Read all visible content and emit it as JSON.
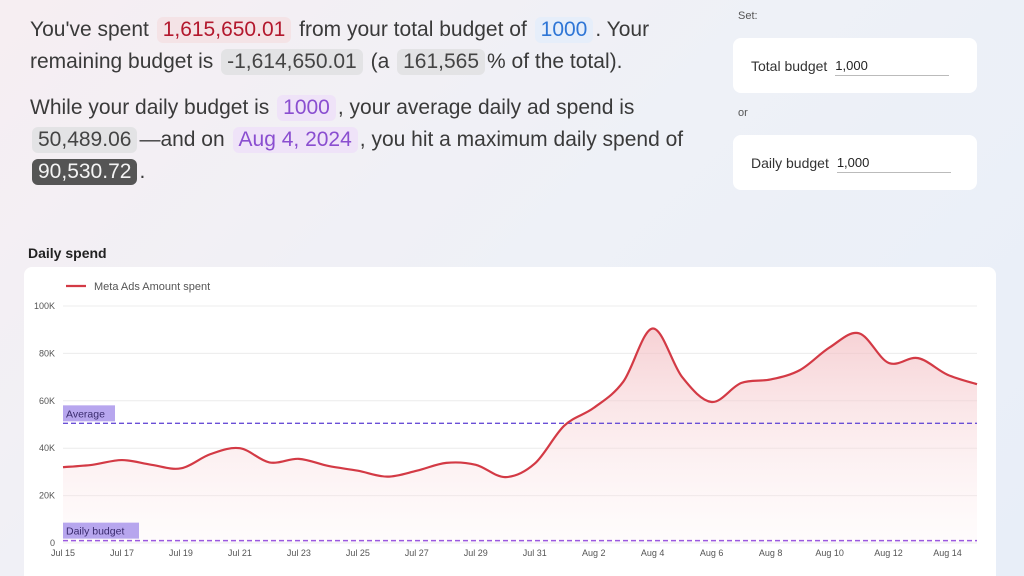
{
  "summary": {
    "p1_a": "You've spent",
    "spent": "1,615,650.01",
    "p1_b": "from your total budget of",
    "total_budget": "1000",
    "p1_c": ". Your remaining budget is",
    "remaining": "-1,614,650.01",
    "p1_d": "(a",
    "percent": "161,565",
    "p1_e": "% of the total).",
    "p2_a": "While your daily budget is",
    "daily_budget": "1000",
    "p2_b": ",  your average daily ad spend is",
    "avg_daily": "50,489.06",
    "p2_c": "—and on",
    "max_date": "Aug 4, 2024",
    "p2_d": ", you hit a maximum daily spend of",
    "max_spend": "90,530.72",
    "p2_e": "."
  },
  "controls": {
    "set_label": "Set:",
    "or_label": "or",
    "total_budget_label": "Total budget",
    "total_budget_value": "1,000",
    "daily_budget_label": "Daily budget",
    "daily_budget_value": "1,000"
  },
  "colors": {
    "series": "#d33a45",
    "average": "#6a4fd6",
    "daily_budget": "#9b59e0"
  },
  "chart_data": {
    "type": "area",
    "title": "Daily spend",
    "legend": "top-left",
    "grid": true,
    "ylim": [
      0,
      100000
    ],
    "yticks": [
      0,
      20000,
      40000,
      60000,
      80000,
      100000
    ],
    "ytick_labels": [
      "0",
      "20K",
      "40K",
      "60K",
      "80K",
      "100K"
    ],
    "x": [
      "Jul 15",
      "Jul 16",
      "Jul 17",
      "Jul 18",
      "Jul 19",
      "Jul 20",
      "Jul 21",
      "Jul 22",
      "Jul 23",
      "Jul 24",
      "Jul 25",
      "Jul 26",
      "Jul 27",
      "Jul 28",
      "Jul 29",
      "Jul 30",
      "Jul 31",
      "Aug 1",
      "Aug 2",
      "Aug 3",
      "Aug 4",
      "Aug 5",
      "Aug 6",
      "Aug 7",
      "Aug 8",
      "Aug 9",
      "Aug 10",
      "Aug 11",
      "Aug 12",
      "Aug 13",
      "Aug 14",
      "Aug 15"
    ],
    "xtick_labels": [
      "Jul 15",
      "Jul 17",
      "Jul 19",
      "Jul 21",
      "Jul 23",
      "Jul 25",
      "Jul 27",
      "Jul 29",
      "Jul 31",
      "Aug 2",
      "Aug 4",
      "Aug 6",
      "Aug 8",
      "Aug 10",
      "Aug 12",
      "Aug 14"
    ],
    "series": [
      {
        "name": "Meta Ads Amount spent",
        "values": [
          32000,
          33000,
          35000,
          33000,
          31500,
          37500,
          40000,
          34000,
          35500,
          32500,
          30500,
          28000,
          30500,
          33800,
          33000,
          27800,
          33500,
          49500,
          57000,
          68000,
          90500,
          70000,
          59500,
          67500,
          69000,
          73000,
          82500,
          88500,
          76000,
          78000,
          71000,
          67000
        ]
      }
    ],
    "reference_lines": [
      {
        "label": "Average",
        "value": 50489.06
      },
      {
        "label": "Daily budget",
        "value": 1000
      }
    ]
  }
}
